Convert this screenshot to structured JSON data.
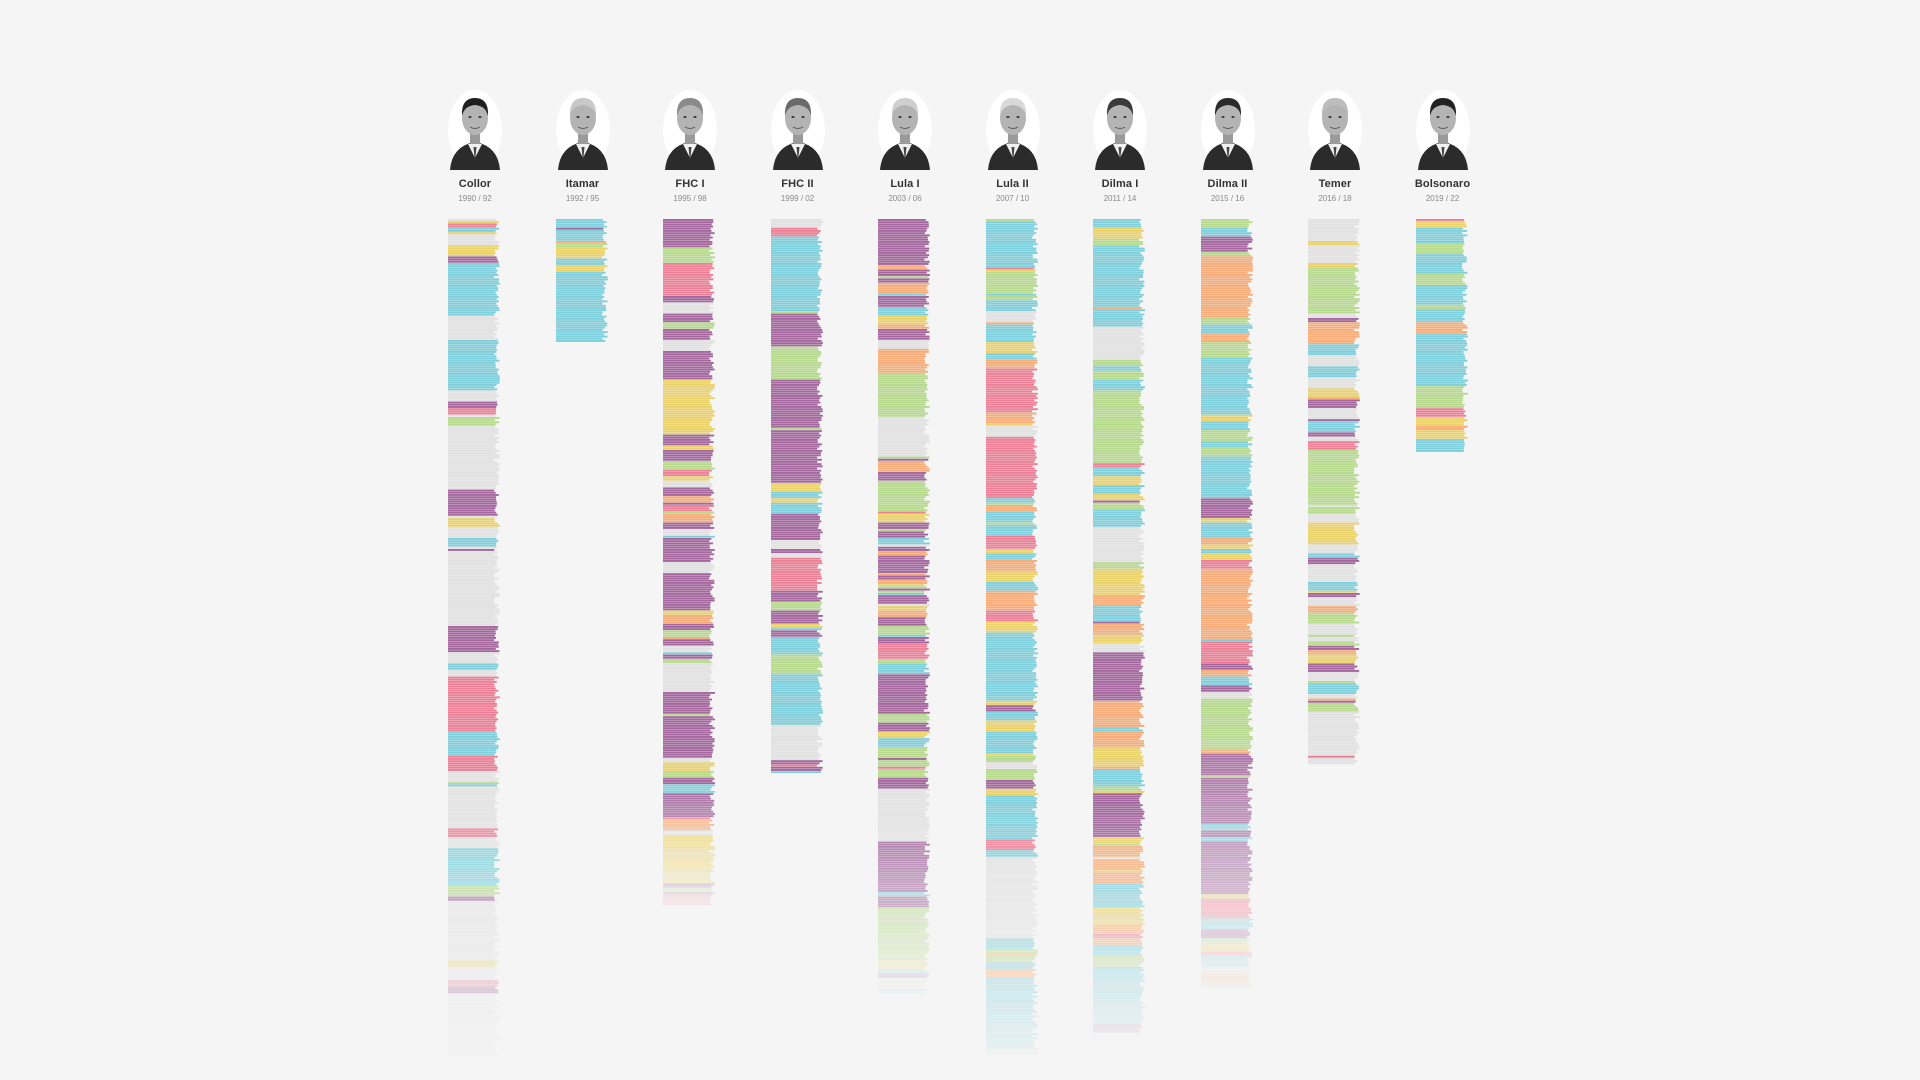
{
  "chart_data": {
    "type": "bar",
    "colors": {
      "yellow": "#ead26a",
      "purple": "#a3679e",
      "pink": "#ec7f96",
      "cyan": "#7ecfdb",
      "green": "#b6d98d",
      "orange": "#f5ac79",
      "gray": "#e1e1e1"
    },
    "series": [
      {
        "name": "Collor",
        "term": "1990 / 92",
        "bar_count": 380,
        "seed": 11,
        "fade_after": 0.66,
        "dominant": "gray",
        "palette": [
          "yellow",
          "purple",
          "pink",
          "cyan",
          "green",
          "gray",
          "gray",
          "gray"
        ]
      },
      {
        "name": "Itamar",
        "term": "1992 / 95",
        "bar_count": 56,
        "seed": 23,
        "fade_after": 1.0,
        "dominant": "cyan",
        "palette": [
          "yellow",
          "purple",
          "pink",
          "cyan",
          "green",
          "orange",
          "gray"
        ]
      },
      {
        "name": "FHC I",
        "term": "1995 / 98",
        "bar_count": 312,
        "seed": 37,
        "fade_after": 0.82,
        "dominant": "purple",
        "palette": [
          "yellow",
          "purple",
          "pink",
          "cyan",
          "green",
          "orange",
          "gray"
        ]
      },
      {
        "name": "FHC II",
        "term": "1999 / 02",
        "bar_count": 252,
        "seed": 41,
        "fade_after": 1.0,
        "dominant": "purple",
        "palette": [
          "yellow",
          "purple",
          "pink",
          "cyan",
          "green",
          "gray"
        ]
      },
      {
        "name": "Lula I",
        "term": "2003 / 06",
        "bar_count": 352,
        "seed": 53,
        "fade_after": 0.74,
        "dominant": "purple",
        "palette": [
          "yellow",
          "purple",
          "pink",
          "cyan",
          "green",
          "orange",
          "gray"
        ]
      },
      {
        "name": "Lula II",
        "term": "2007 / 10",
        "bar_count": 380,
        "seed": 67,
        "fade_after": 0.7,
        "dominant": "cyan",
        "palette": [
          "yellow",
          "purple",
          "pink",
          "cyan",
          "green",
          "orange",
          "gray"
        ]
      },
      {
        "name": "Dilma I",
        "term": "2011 / 14",
        "bar_count": 370,
        "seed": 71,
        "fade_after": 0.72,
        "dominant": "cyan",
        "palette": [
          "yellow",
          "purple",
          "pink",
          "cyan",
          "green",
          "orange",
          "gray"
        ]
      },
      {
        "name": "Dilma II",
        "term": "2015 / 16",
        "bar_count": 350,
        "seed": 83,
        "fade_after": 0.66,
        "dominant": "cyan",
        "palette": [
          "yellow",
          "purple",
          "pink",
          "cyan",
          "green",
          "orange",
          "gray"
        ]
      },
      {
        "name": "Temer",
        "term": "2016 / 18",
        "bar_count": 248,
        "seed": 97,
        "fade_after": 1.0,
        "dominant": "gray",
        "palette": [
          "yellow",
          "purple",
          "pink",
          "cyan",
          "green",
          "orange",
          "gray"
        ]
      },
      {
        "name": "Bolsonaro",
        "term": "2019 / 22",
        "bar_count": 106,
        "seed": 103,
        "fade_after": 1.0,
        "dominant": "cyan",
        "palette": [
          "yellow",
          "purple",
          "pink",
          "cyan",
          "green",
          "orange"
        ]
      }
    ]
  }
}
